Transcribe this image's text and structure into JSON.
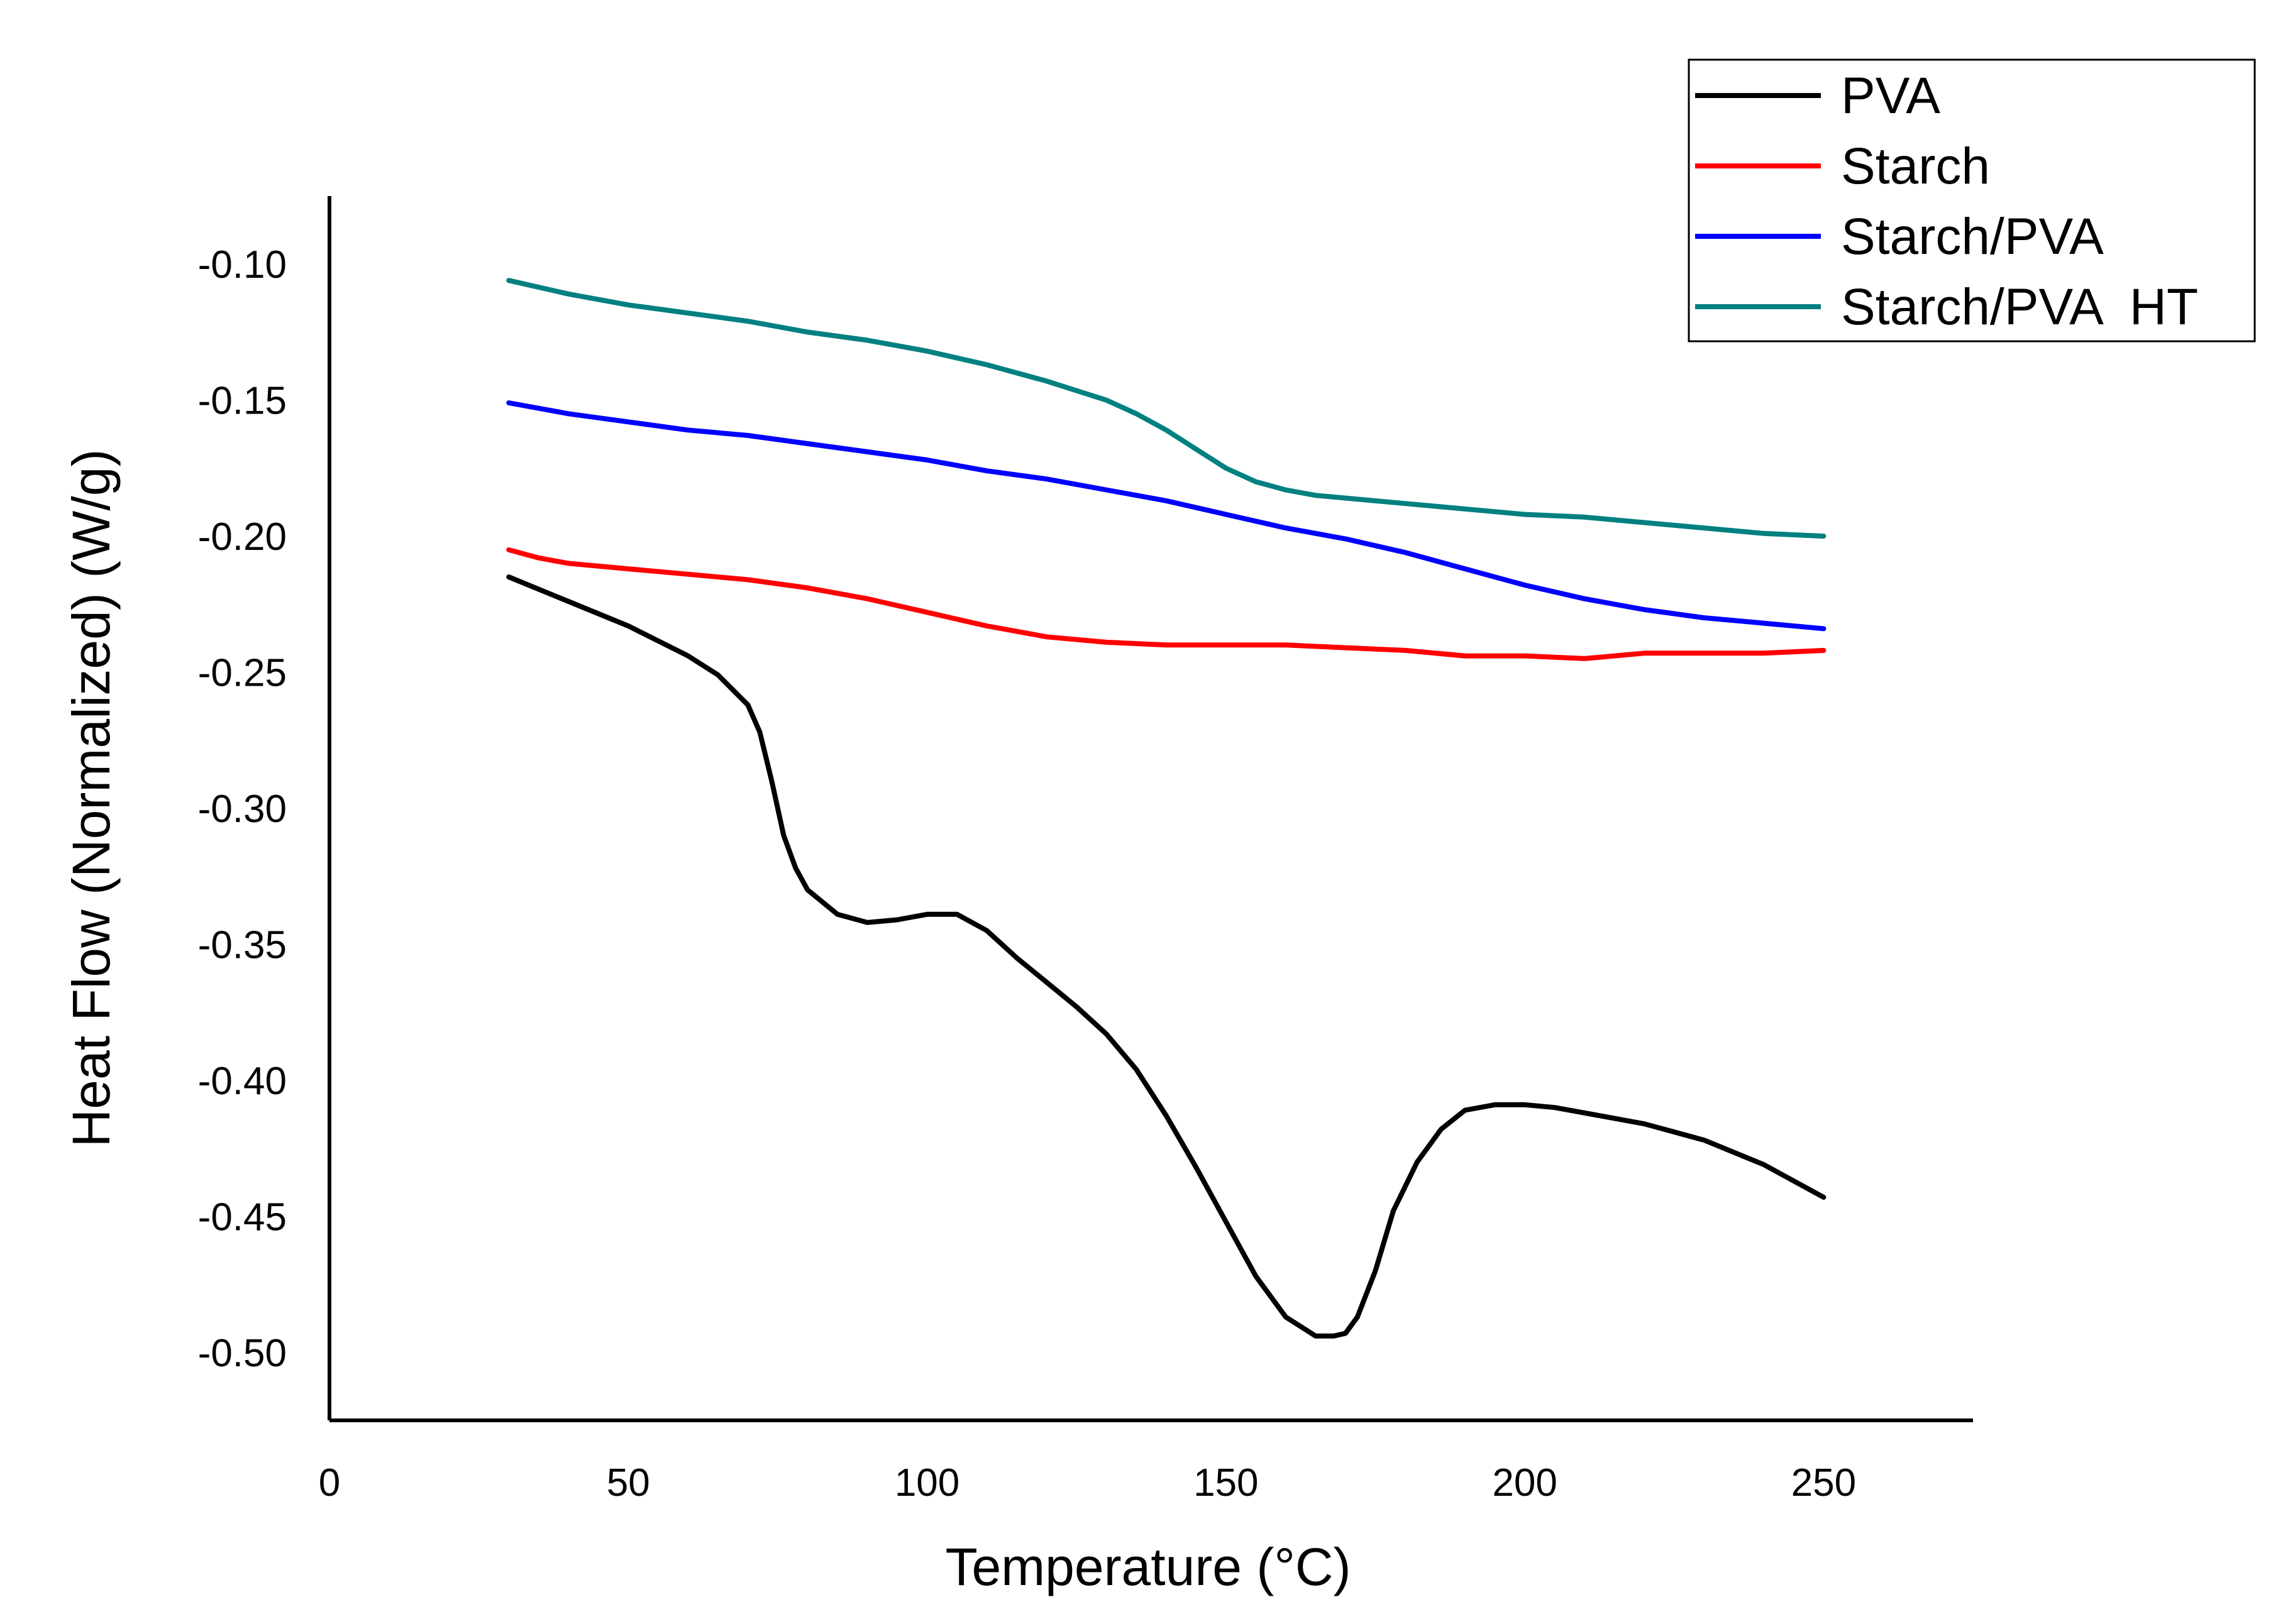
{
  "chart_data": {
    "type": "line",
    "title": "",
    "xlabel": "Temperature (°C)",
    "ylabel": "Heat Flow (Normalized) (W/g)",
    "xlim": [
      0,
      275
    ],
    "ylim": [
      -0.525,
      -0.075
    ],
    "xticks": [
      0,
      50,
      100,
      150,
      200,
      250
    ],
    "xtick_labels": [
      "0",
      "50",
      "100",
      "150",
      "200",
      "250"
    ],
    "yticks": [
      -0.1,
      -0.15,
      -0.2,
      -0.25,
      -0.3,
      -0.35,
      -0.4,
      -0.45,
      -0.5
    ],
    "ytick_labels": [
      "-0.10",
      "-0.15",
      "-0.20",
      "-0.25",
      "-0.30",
      "-0.35",
      "-0.40",
      "-0.45",
      "-0.50"
    ],
    "grid": false,
    "legend_position": "top-right",
    "series": [
      {
        "name": "PVA",
        "color": "#000000",
        "x": [
          30,
          40,
          50,
          60,
          65,
          70,
          72,
          74,
          76,
          78,
          80,
          85,
          90,
          95,
          100,
          105,
          110,
          115,
          120,
          125,
          130,
          135,
          140,
          145,
          150,
          155,
          160,
          165,
          168,
          170,
          172,
          175,
          178,
          182,
          186,
          190,
          195,
          200,
          205,
          210,
          220,
          230,
          240,
          250
        ],
        "y": [
          -0.215,
          -0.224,
          -0.233,
          -0.244,
          -0.251,
          -0.262,
          -0.272,
          -0.29,
          -0.31,
          -0.322,
          -0.33,
          -0.339,
          -0.342,
          -0.341,
          -0.339,
          -0.339,
          -0.345,
          -0.355,
          -0.364,
          -0.373,
          -0.383,
          -0.396,
          -0.413,
          -0.432,
          -0.452,
          -0.472,
          -0.487,
          -0.494,
          -0.494,
          -0.493,
          -0.487,
          -0.47,
          -0.448,
          -0.43,
          -0.418,
          -0.411,
          -0.409,
          -0.409,
          -0.41,
          -0.412,
          -0.416,
          -0.422,
          -0.431,
          -0.443
        ]
      },
      {
        "name": "Starch",
        "color": "#ff0000",
        "x": [
          30,
          35,
          40,
          50,
          60,
          70,
          80,
          90,
          100,
          110,
          120,
          130,
          140,
          150,
          160,
          170,
          180,
          190,
          200,
          210,
          215,
          220,
          230,
          240,
          250
        ],
        "y": [
          -0.205,
          -0.208,
          -0.21,
          -0.212,
          -0.214,
          -0.216,
          -0.219,
          -0.223,
          -0.228,
          -0.233,
          -0.237,
          -0.239,
          -0.24,
          -0.24,
          -0.24,
          -0.241,
          -0.242,
          -0.244,
          -0.244,
          -0.245,
          -0.244,
          -0.243,
          -0.243,
          -0.243,
          -0.242
        ]
      },
      {
        "name": "Starch/PVA",
        "color": "#0000ff",
        "x": [
          30,
          40,
          50,
          60,
          70,
          80,
          90,
          100,
          110,
          120,
          130,
          140,
          150,
          160,
          170,
          180,
          190,
          200,
          210,
          220,
          230,
          240,
          250
        ],
        "y": [
          -0.151,
          -0.155,
          -0.158,
          -0.161,
          -0.163,
          -0.166,
          -0.169,
          -0.172,
          -0.176,
          -0.179,
          -0.183,
          -0.187,
          -0.192,
          -0.197,
          -0.201,
          -0.206,
          -0.212,
          -0.218,
          -0.223,
          -0.227,
          -0.23,
          -0.232,
          -0.234
        ]
      },
      {
        "name": "Starch/PVA  HT",
        "color": "#008080",
        "x": [
          30,
          40,
          50,
          60,
          70,
          80,
          90,
          100,
          110,
          120,
          130,
          135,
          140,
          145,
          150,
          155,
          160,
          165,
          170,
          180,
          190,
          200,
          210,
          220,
          230,
          240,
          250
        ],
        "y": [
          -0.106,
          -0.111,
          -0.115,
          -0.118,
          -0.121,
          -0.125,
          -0.128,
          -0.132,
          -0.137,
          -0.143,
          -0.15,
          -0.155,
          -0.161,
          -0.168,
          -0.175,
          -0.18,
          -0.183,
          -0.185,
          -0.186,
          -0.188,
          -0.19,
          -0.192,
          -0.193,
          -0.195,
          -0.197,
          -0.199,
          -0.2
        ]
      }
    ]
  }
}
